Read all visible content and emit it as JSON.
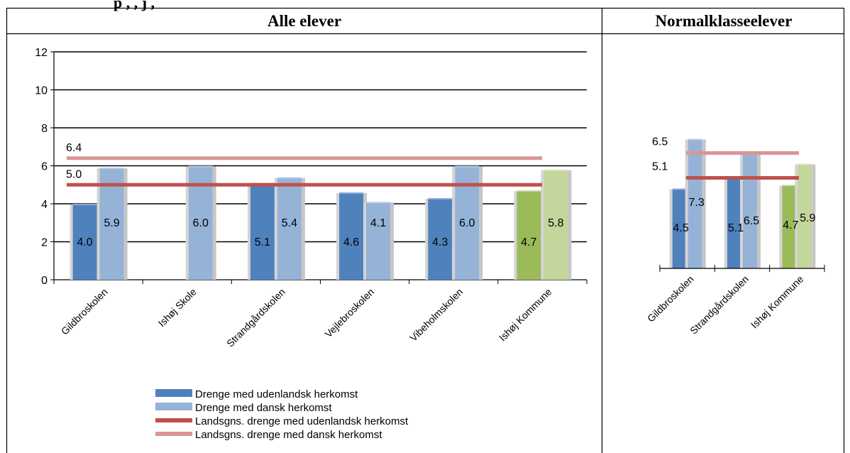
{
  "top_text": "p         ,   ,  j          ,",
  "panels": {
    "left_title": "Alle elever",
    "right_title": "Normalklasseelever"
  },
  "colors": {
    "foreign_blue": "#4f81bd",
    "danish_blue": "#95b3d7",
    "foreign_green": "#9bbb59",
    "danish_green": "#c3d69b",
    "avg_foreign_line": "#c0504d",
    "avg_danish_line": "#d99694"
  },
  "chart_data": [
    {
      "type": "bar",
      "title": "Alle elever",
      "categories": [
        "Gildbroskolen",
        "Ishøj Skole",
        "Strandgårdskolen",
        "Vejlebroskolen",
        "Vibeholmskolen",
        "Ishøj Kommune"
      ],
      "series": [
        {
          "name": "Drenge med udenlandsk herkomst",
          "values": [
            4.0,
            null,
            5.1,
            4.6,
            4.3,
            4.7
          ]
        },
        {
          "name": "Drenge med dansk herkomst",
          "values": [
            5.9,
            6.0,
            5.4,
            4.1,
            6.0,
            5.8
          ]
        }
      ],
      "reference_lines": [
        {
          "name": "Landsgns. drenge med udenlandsk herkomst",
          "value": 5.0,
          "label": "5.0"
        },
        {
          "name": "Landsgns. drenge med dansk herkomst",
          "value": 6.4,
          "label": "6.4"
        }
      ],
      "ylim": [
        0,
        12
      ],
      "yticks": [
        0,
        2,
        4,
        6,
        8,
        10,
        12
      ],
      "grid": true,
      "legend": "bottom"
    },
    {
      "type": "bar",
      "title": "Normalklasseelever",
      "categories": [
        "Gildbroskolen",
        "Strandgårdskolen",
        "Ishøj Kommune"
      ],
      "series": [
        {
          "name": "Drenge med udenlandsk herkomst",
          "values": [
            4.5,
            5.1,
            4.7
          ]
        },
        {
          "name": "Drenge med dansk herkomst",
          "values": [
            7.3,
            6.5,
            5.9
          ]
        }
      ],
      "reference_lines": [
        {
          "name": "Landsgns. drenge med udenlandsk herkomst",
          "value": 5.1,
          "label": "5.1"
        },
        {
          "name": "Landsgns. drenge med dansk herkomst",
          "value": 6.5,
          "label": "6.5"
        }
      ],
      "grid": false,
      "legend": "none"
    }
  ]
}
